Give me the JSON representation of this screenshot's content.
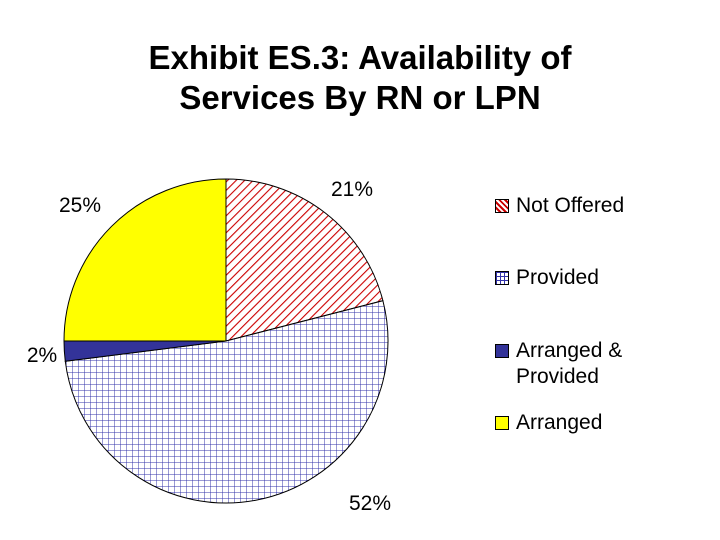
{
  "chart_data": {
    "type": "pie",
    "title_line1": "Exhibit ES.3: Availability of",
    "title_line2": "Services By RN or LPN",
    "slices": [
      {
        "name": "Not Offered",
        "value": 21,
        "label": "21%",
        "pattern": "diagonal",
        "fill": "#ffffff",
        "line": "#cc0000"
      },
      {
        "name": "Provided",
        "value": 52,
        "label": "52%",
        "pattern": "grid",
        "fill": "#ffffff",
        "line": "#3333aa"
      },
      {
        "name": "Arranged & Provided",
        "value": 2,
        "label": "2%",
        "pattern": "solid",
        "fill": "#333399",
        "line": "#333399"
      },
      {
        "name": "Arranged",
        "value": 25,
        "label": "25%",
        "pattern": "solid",
        "fill": "#ffff00",
        "line": "#ffff00"
      }
    ],
    "start_angle_deg": 0,
    "direction": "clockwise"
  },
  "legend": {
    "items": [
      {
        "label": "Not Offered"
      },
      {
        "label": "Provided"
      },
      {
        "label": "Arranged & Provided"
      },
      {
        "label": "Arranged"
      }
    ]
  }
}
